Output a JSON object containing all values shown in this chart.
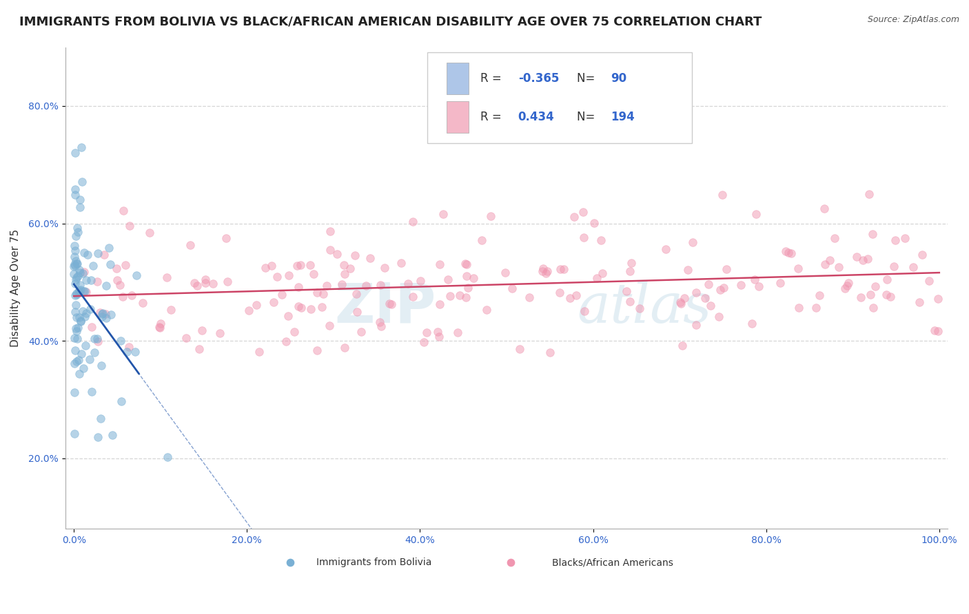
{
  "title": "IMMIGRANTS FROM BOLIVIA VS BLACK/AFRICAN AMERICAN DISABILITY AGE OVER 75 CORRELATION CHART",
  "source_text": "Source: ZipAtlas.com",
  "ylabel": "Disability Age Over 75",
  "watermark_zip": "ZIP",
  "watermark_atlas": "atlas",
  "legend1_color": "#aec6e8",
  "legend2_color": "#f4b8c8",
  "scatter1_color": "#7ab0d4",
  "scatter2_color": "#f096b0",
  "line1_color": "#2255aa",
  "line2_color": "#cc4466",
  "r1": -0.365,
  "n1": 90,
  "r2": 0.434,
  "n2": 194,
  "background_color": "#ffffff",
  "grid_color": "#cccccc",
  "title_fontsize": 13,
  "axis_label_fontsize": 11,
  "tick_fontsize": 10,
  "legend_fontsize": 12,
  "seed1": 42,
  "seed2": 77
}
